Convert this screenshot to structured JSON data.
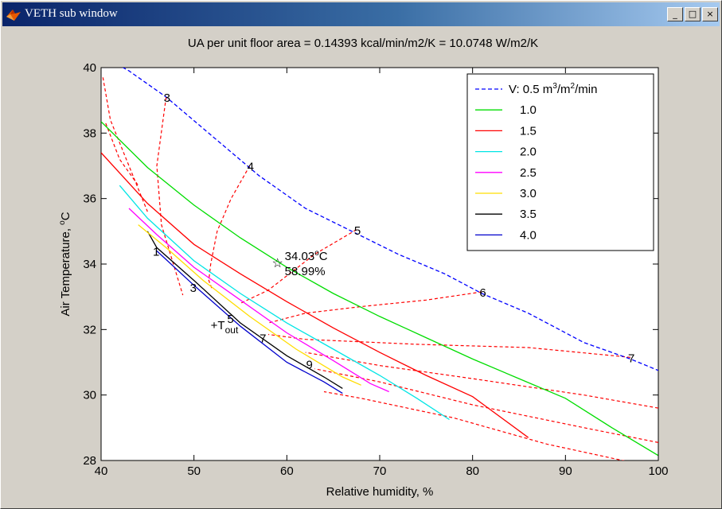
{
  "window": {
    "title": "VETH sub window",
    "controls": {
      "minimize": "_",
      "maximize": "□",
      "close": "×"
    }
  },
  "chart_data": {
    "type": "line",
    "title": "UA per unit floor area = 0.14393 kcal/min/m2/K = 10.0748 W/m2/K",
    "xlabel": "Relative humidity, %",
    "ylabel_text": "Air Temperature, ",
    "ylabel_unit": "C",
    "ylabel_sup": "o",
    "xlim": [
      40,
      100
    ],
    "ylim": [
      28,
      40
    ],
    "xticks": [
      40,
      50,
      60,
      70,
      80,
      90,
      100
    ],
    "yticks": [
      28,
      30,
      32,
      34,
      36,
      38,
      40
    ],
    "grid": false,
    "legend_position": "top-right",
    "legend_prefix": "V: ",
    "legend_unit": "m",
    "legend_unit_sup": "3",
    "legend_unit_mid": "/m",
    "legend_unit_sup2": "2",
    "legend_unit_end": "/min",
    "series": [
      {
        "name": "0.5",
        "color": "#0000ff",
        "dashed": true,
        "points": [
          [
            40.5,
            40.3
          ],
          [
            43,
            39.9
          ],
          [
            47,
            39.1
          ],
          [
            52,
            37.9
          ],
          [
            57,
            36.7
          ],
          [
            62,
            35.7
          ],
          [
            67,
            35.0
          ],
          [
            72,
            34.3
          ],
          [
            77,
            33.7
          ],
          [
            81,
            33.1
          ],
          [
            86,
            32.5
          ],
          [
            92,
            31.6
          ],
          [
            97,
            31.1
          ],
          [
            100,
            30.75
          ]
        ]
      },
      {
        "name": "1.0",
        "color": "#00dd00",
        "dashed": false,
        "points": [
          [
            40,
            38.35
          ],
          [
            45,
            36.95
          ],
          [
            50,
            35.8
          ],
          [
            55,
            34.8
          ],
          [
            60,
            33.9
          ],
          [
            65,
            33.1
          ],
          [
            70,
            32.4
          ],
          [
            75,
            31.75
          ],
          [
            80,
            31.1
          ],
          [
            85,
            30.5
          ],
          [
            90,
            29.9
          ],
          [
            95,
            29.0
          ],
          [
            100,
            28.15
          ]
        ]
      },
      {
        "name": "1.5",
        "color": "#ff0000",
        "dashed": false,
        "points": [
          [
            40,
            37.4
          ],
          [
            45,
            35.85
          ],
          [
            50,
            34.6
          ],
          [
            55,
            33.7
          ],
          [
            60,
            32.85
          ],
          [
            65,
            32.05
          ],
          [
            70,
            31.3
          ],
          [
            75,
            30.6
          ],
          [
            80,
            29.95
          ],
          [
            86,
            28.7
          ]
        ]
      },
      {
        "name": "2.0",
        "color": "#00e5e5",
        "dashed": false,
        "points": [
          [
            42,
            36.4
          ],
          [
            45,
            35.4
          ],
          [
            50,
            34.1
          ],
          [
            55,
            33.1
          ],
          [
            60,
            32.2
          ],
          [
            65,
            31.4
          ],
          [
            70,
            30.6
          ],
          [
            74,
            29.9
          ],
          [
            77.5,
            29.25
          ]
        ]
      },
      {
        "name": "2.5",
        "color": "#ff00ff",
        "dashed": false,
        "points": [
          [
            43,
            35.7
          ],
          [
            46,
            34.9
          ],
          [
            50,
            33.9
          ],
          [
            55,
            32.9
          ],
          [
            60,
            31.9
          ],
          [
            65,
            31.05
          ],
          [
            69,
            30.35
          ],
          [
            71,
            30.1
          ]
        ]
      },
      {
        "name": "3.0",
        "color": "#ffdd00",
        "dashed": false,
        "points": [
          [
            44,
            35.2
          ],
          [
            47,
            34.5
          ],
          [
            51,
            33.5
          ],
          [
            56,
            32.4
          ],
          [
            61,
            31.4
          ],
          [
            66,
            30.55
          ],
          [
            68,
            30.3
          ]
        ]
      },
      {
        "name": "3.5",
        "color": "#000000",
        "dashed": false,
        "points": [
          [
            45,
            35.0
          ],
          [
            46,
            34.5
          ],
          [
            50,
            33.5
          ],
          [
            55,
            32.2
          ],
          [
            60,
            31.2
          ],
          [
            64,
            30.55
          ],
          [
            66,
            30.2
          ]
        ]
      },
      {
        "name": "4.0",
        "color": "#0000cc",
        "dashed": false,
        "points": [
          [
            46,
            34.4
          ],
          [
            50,
            33.35
          ],
          [
            55,
            32.1
          ],
          [
            60,
            31.0
          ],
          [
            64,
            30.4
          ],
          [
            66,
            30.05
          ]
        ]
      }
    ],
    "iso_lines_color": "#ff0000",
    "iso_lines": [
      {
        "label": "3",
        "points": [
          [
            47,
            39.1
          ],
          [
            46,
            37.0
          ],
          [
            46.5,
            35.2
          ],
          [
            48,
            33.8
          ],
          [
            48.8,
            33.05
          ]
        ]
      },
      {
        "label": "4",
        "points": [
          [
            56,
            37.0
          ],
          [
            54,
            36.0
          ],
          [
            52.5,
            35.0
          ],
          [
            51.8,
            34.0
          ],
          [
            51.6,
            33.5
          ],
          [
            52,
            33.2
          ]
        ]
      },
      {
        "label": "5",
        "points": [
          [
            67.5,
            35.05
          ],
          [
            63,
            34.3
          ],
          [
            58,
            33.2
          ],
          [
            55,
            32.8
          ]
        ]
      },
      {
        "label": "6",
        "points": [
          [
            81,
            33.15
          ],
          [
            75,
            32.9
          ],
          [
            68,
            32.7
          ],
          [
            62,
            32.5
          ],
          [
            58,
            32.2
          ]
        ]
      },
      {
        "label": "7",
        "points": [
          [
            97,
            31.15
          ],
          [
            86,
            31.45
          ],
          [
            74,
            31.55
          ],
          [
            62,
            31.7
          ],
          [
            58,
            31.85
          ]
        ]
      },
      {
        "label": "",
        "points": [
          [
            40.2,
            39.7
          ],
          [
            41,
            38.4
          ],
          [
            43,
            37.0
          ],
          [
            45,
            35.6
          ]
        ]
      },
      {
        "label": "",
        "points": [
          [
            40.5,
            38.3
          ],
          [
            42,
            37.2
          ],
          [
            44,
            36.4
          ]
        ]
      },
      {
        "label": "",
        "points": [
          [
            100,
            29.6
          ],
          [
            92,
            30.0
          ],
          [
            80,
            30.5
          ],
          [
            70,
            30.9
          ],
          [
            62,
            31.3
          ]
        ]
      },
      {
        "label": "",
        "points": [
          [
            100,
            28.55
          ],
          [
            92,
            29.0
          ],
          [
            80,
            29.7
          ],
          [
            70,
            30.4
          ],
          [
            63,
            30.8
          ]
        ]
      },
      {
        "label": "",
        "points": [
          [
            97,
            27.95
          ],
          [
            88,
            28.5
          ],
          [
            78,
            29.3
          ],
          [
            68,
            29.9
          ],
          [
            64,
            30.1
          ]
        ]
      }
    ],
    "velocity_labels": [
      {
        "text": "1",
        "x": 46,
        "y": 34.4
      },
      {
        "text": "3",
        "x": 50,
        "y": 33.3
      },
      {
        "text": "5",
        "x": 54,
        "y": 32.35
      },
      {
        "text": "7",
        "x": 57.5,
        "y": 31.75
      },
      {
        "text": "9",
        "x": 62.5,
        "y": 30.95
      }
    ],
    "marker": {
      "x": 59,
      "y": 34.03,
      "temp_value": "34.03",
      "temp_sup": "o",
      "temp_unit": "C",
      "rh_label": "58.99%"
    },
    "tout": {
      "x": 51.8,
      "y": 32.2,
      "prefix": "+T",
      "sub": "out"
    }
  }
}
